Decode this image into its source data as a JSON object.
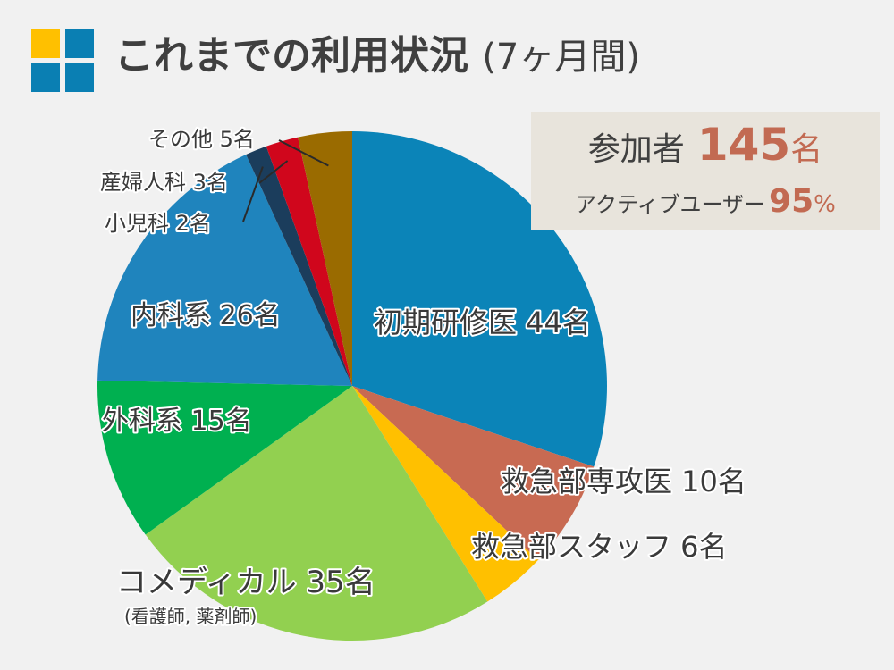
{
  "title": {
    "main": "これまでの利用状況",
    "period": "(7ヶ月間)"
  },
  "summary": {
    "participants_label": "参加者",
    "participants_value": "145",
    "participants_unit": "名",
    "active_label": "アクティブユーザー",
    "active_value": "95",
    "active_unit": "%"
  },
  "colors": {
    "accent": "#c26a52",
    "logo_yellow": "#ffc000",
    "logo_blue": "#0a7fb3"
  },
  "chart_data": {
    "type": "pie",
    "unit": "名",
    "start_angle_deg": 0,
    "direction": "clockwise",
    "slices": [
      {
        "label": "初期研修医",
        "value": 44,
        "color": "#0b84b8",
        "display": "初期研修医 44名"
      },
      {
        "label": "救急部専攻医",
        "value": 10,
        "color": "#c86a52",
        "display": "救急部専攻医 10名"
      },
      {
        "label": "救急部スタッフ",
        "value": 6,
        "color": "#ffc000",
        "display": "救急部スタッフ 6名"
      },
      {
        "label": "コメディカル",
        "value": 35,
        "color": "#92d050",
        "display": "コメディカル 35名",
        "note": "(看護師, 薬剤師)"
      },
      {
        "label": "外科系",
        "value": 15,
        "color": "#00b050",
        "display": "外科系 15名"
      },
      {
        "label": "内科系",
        "value": 26,
        "color": "#1f84bd",
        "display": "内科系 26名"
      },
      {
        "label": "小児科",
        "value": 2,
        "color": "#1b3d5c",
        "display": "小児科 2名"
      },
      {
        "label": "産婦人科",
        "value": 3,
        "color": "#d0061c",
        "display": "産婦人科 3名"
      },
      {
        "label": "その他",
        "value": 5,
        "color": "#9a6b00",
        "display": "その他 5名"
      }
    ]
  }
}
